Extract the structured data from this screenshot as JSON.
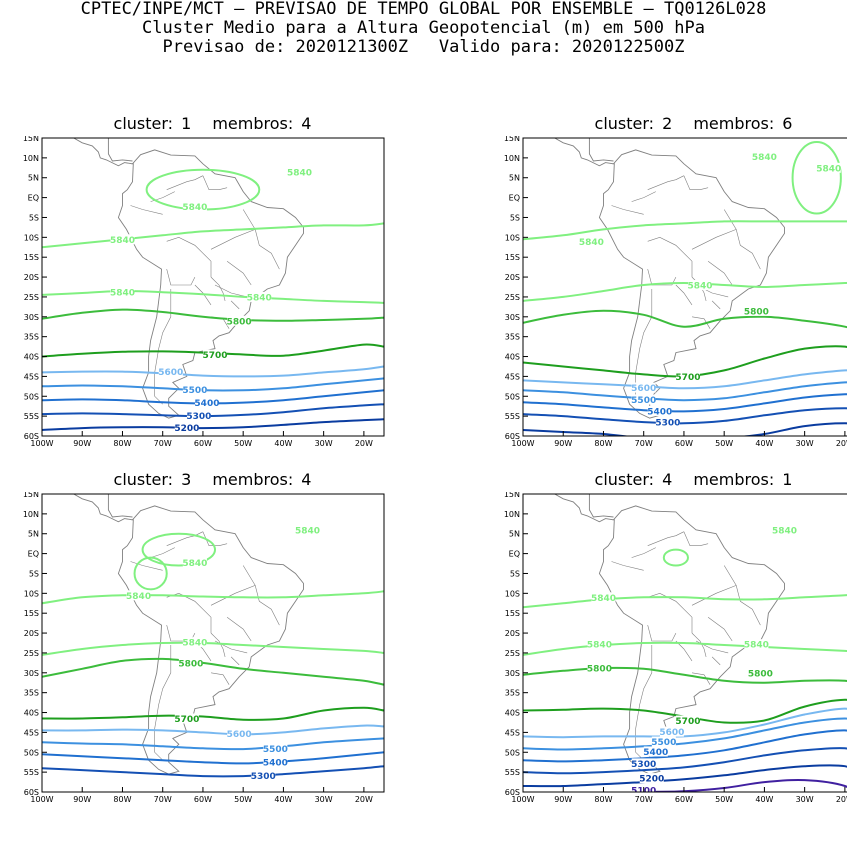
{
  "header": {
    "line1": "CPTEC/INPE/MCT – PREVISAO DE TEMPO GLOBAL POR ENSEMBLE – TQ0126L028",
    "line2": "Cluster Medio para a Altura Geopotencial (m) em 500 hPa",
    "line3_forecast": "Previsao de: 2020121300Z",
    "line3_valid": "Valido para: 2020122500Z"
  },
  "axes": {
    "lat_labels": [
      "15N",
      "10N",
      "5N",
      "EQ",
      "5S",
      "10S",
      "15S",
      "20S",
      "25S",
      "30S",
      "35S",
      "40S",
      "45S",
      "50S",
      "55S",
      "60S"
    ],
    "lon_labels": [
      "100W",
      "90W",
      "80W",
      "70W",
      "60W",
      "50W",
      "40W",
      "30W",
      "20W"
    ]
  },
  "colors": {
    "5840": "#80f080",
    "5800": "#3cbc3c",
    "5700": "#1e9e1e",
    "5600": "#78b8f0",
    "5500": "#3c90e0",
    "5400": "#2070d0",
    "5300": "#1450b4",
    "5200": "#0a3ca0",
    "5100": "#4020a0",
    "land": "#808080"
  },
  "panels": [
    {
      "cluster_label": "cluster:",
      "cluster_num": "1",
      "members_label": "membros:",
      "members_num": "4",
      "contours": [
        {
          "level": "5840",
          "lats": [
            -12.5,
            -11.5,
            -10.5,
            -9.5,
            -8.5,
            -8.0,
            -7.5,
            -7.0,
            -7.0,
            -6.5
          ]
        },
        {
          "level": "5840",
          "lats": [
            -24.5,
            -24.0,
            -23.5,
            -23.8,
            -24.3,
            -25.0,
            -25.5,
            -26.0,
            -26.3,
            -26.5
          ]
        },
        {
          "level": "5800",
          "lats": [
            -30.5,
            -29.0,
            -28.2,
            -28.8,
            -30.0,
            -30.8,
            -31.0,
            -30.8,
            -30.5,
            -30.2
          ]
        },
        {
          "level": "5700",
          "lats": [
            -40.0,
            -39.3,
            -38.8,
            -38.7,
            -39.0,
            -39.5,
            -39.8,
            -38.5,
            -37.0,
            -37.5
          ]
        },
        {
          "level": "5600",
          "lats": [
            -44.0,
            -43.8,
            -43.8,
            -44.2,
            -44.8,
            -45.0,
            -44.8,
            -44.0,
            -43.2,
            -42.5
          ]
        },
        {
          "level": "5500",
          "lats": [
            -47.5,
            -47.3,
            -47.5,
            -48.0,
            -48.5,
            -48.5,
            -48.0,
            -47.0,
            -46.0,
            -45.5
          ]
        },
        {
          "level": "5400",
          "lats": [
            -51.0,
            -50.8,
            -51.0,
            -51.5,
            -51.8,
            -51.6,
            -51.0,
            -50.0,
            -49.0,
            -48.5
          ]
        },
        {
          "level": "5300",
          "lats": [
            -54.5,
            -54.3,
            -54.5,
            -54.8,
            -55.0,
            -54.7,
            -54.0,
            -53.0,
            -52.3,
            -52.0
          ]
        },
        {
          "level": "5200",
          "lats": [
            -58.5,
            -58.0,
            -57.8,
            -57.8,
            -58.0,
            -57.8,
            -57.2,
            -56.5,
            -56.0,
            -55.8
          ]
        }
      ],
      "blobs": [
        {
          "lon": -60,
          "lat": 2,
          "rx": 14,
          "ry": 5
        }
      ],
      "labels": [
        {
          "text": "5840",
          "lon": -80,
          "lat": -10.5
        },
        {
          "text": "5840",
          "lon": -62,
          "lat": -2.2
        },
        {
          "text": "5840",
          "lon": -36,
          "lat": 6.5
        },
        {
          "text": "5840",
          "lon": -80,
          "lat": -23.7
        },
        {
          "text": "5840",
          "lon": -46,
          "lat": -25.0
        },
        {
          "text": "5800",
          "lon": -51,
          "lat": -31.0
        },
        {
          "text": "5700",
          "lon": -57,
          "lat": -39.5
        },
        {
          "text": "5600",
          "lon": -68,
          "lat": -43.8
        },
        {
          "text": "5500",
          "lon": -62,
          "lat": -48.3
        },
        {
          "text": "5400",
          "lon": -59,
          "lat": -51.6
        },
        {
          "text": "5300",
          "lon": -61,
          "lat": -54.8
        },
        {
          "text": "5200",
          "lon": -64,
          "lat": -57.8
        }
      ]
    },
    {
      "cluster_label": "cluster:",
      "cluster_num": "2",
      "members_label": "membros:",
      "members_num": "6",
      "contours": [
        {
          "level": "5840",
          "lats": [
            -10.5,
            -9.5,
            -8.0,
            -7.0,
            -6.5,
            -6.0,
            -6.0,
            -6.0,
            -6.0,
            -6.0
          ]
        },
        {
          "level": "5840",
          "lats": [
            -26.0,
            -25.0,
            -23.5,
            -22.0,
            -21.5,
            -22.0,
            -22.5,
            -22.0,
            -21.5,
            -21.5
          ]
        },
        {
          "level": "5800",
          "lats": [
            -31.5,
            -29.5,
            -28.5,
            -29.5,
            -32.5,
            -30.5,
            -30.0,
            -31.0,
            -32.5,
            -34.0
          ]
        },
        {
          "level": "5700",
          "lats": [
            -41.5,
            -42.5,
            -43.5,
            -44.5,
            -45.0,
            -43.5,
            -40.5,
            -38.0,
            -37.5,
            -39.5
          ]
        },
        {
          "level": "5600",
          "lats": [
            -46.0,
            -46.5,
            -47.0,
            -47.5,
            -48.0,
            -47.5,
            -46.0,
            -44.5,
            -43.5,
            -43.5
          ]
        },
        {
          "level": "5500",
          "lats": [
            -48.5,
            -49.0,
            -49.8,
            -50.5,
            -51.0,
            -50.5,
            -49.0,
            -47.5,
            -46.5,
            -46.5
          ]
        },
        {
          "level": "5400",
          "lats": [
            -51.5,
            -52.0,
            -52.8,
            -53.5,
            -53.8,
            -53.2,
            -51.8,
            -50.3,
            -49.5,
            -49.5
          ]
        },
        {
          "level": "5300",
          "lats": [
            -54.5,
            -55.0,
            -55.8,
            -56.5,
            -56.8,
            -56.2,
            -54.8,
            -53.5,
            -53.0,
            -53.5
          ]
        },
        {
          "level": "5200",
          "lats": [
            -58.5,
            -59.0,
            -59.5,
            -60.5,
            -60.5,
            -60.5,
            -59.5,
            -57.5,
            -56.8,
            -57.5
          ]
        }
      ],
      "blobs": [
        {
          "lon": -27,
          "lat": 5,
          "rx": 6,
          "ry": 9
        }
      ],
      "labels": [
        {
          "text": "5840",
          "lon": -83,
          "lat": -11.0
        },
        {
          "text": "5840",
          "lon": -40,
          "lat": 10.3
        },
        {
          "text": "5840",
          "lon": -24,
          "lat": 7.5
        },
        {
          "text": "5840",
          "lon": -56,
          "lat": -22.0
        },
        {
          "text": "5800",
          "lon": -42,
          "lat": -28.5
        },
        {
          "text": "5700",
          "lon": -59,
          "lat": -45.0
        },
        {
          "text": "5600",
          "lon": -70,
          "lat": -47.8
        },
        {
          "text": "5500",
          "lon": -70,
          "lat": -50.8
        },
        {
          "text": "5400",
          "lon": -66,
          "lat": -53.7
        },
        {
          "text": "5300",
          "lon": -64,
          "lat": -56.5
        }
      ]
    },
    {
      "cluster_label": "cluster:",
      "cluster_num": "3",
      "members_label": "membros:",
      "members_num": "4",
      "contours": [
        {
          "level": "5840",
          "lats": [
            -12.5,
            -11.0,
            -10.5,
            -10.5,
            -10.8,
            -11.0,
            -11.0,
            -10.5,
            -10.0,
            -9.5
          ]
        },
        {
          "level": "5840",
          "lats": [
            -25.5,
            -24.0,
            -23.0,
            -22.5,
            -22.5,
            -23.0,
            -23.5,
            -24.0,
            -24.5,
            -25.0
          ]
        },
        {
          "level": "5800",
          "lats": [
            -31.0,
            -29.0,
            -27.0,
            -26.5,
            -27.5,
            -29.0,
            -30.0,
            -31.0,
            -32.0,
            -33.0
          ]
        },
        {
          "level": "5700",
          "lats": [
            -41.5,
            -41.5,
            -41.2,
            -40.8,
            -41.0,
            -41.8,
            -41.5,
            -39.5,
            -38.8,
            -39.5
          ]
        },
        {
          "level": "5600",
          "lats": [
            -44.5,
            -44.5,
            -44.3,
            -44.5,
            -45.0,
            -45.5,
            -45.0,
            -44.0,
            -43.3,
            -43.5
          ]
        },
        {
          "level": "5500",
          "lats": [
            -47.5,
            -47.8,
            -48.0,
            -48.5,
            -49.0,
            -49.2,
            -48.5,
            -47.5,
            -46.8,
            -46.5
          ]
        },
        {
          "level": "5400",
          "lats": [
            -50.5,
            -51.0,
            -51.5,
            -52.0,
            -52.5,
            -52.8,
            -52.3,
            -51.5,
            -50.5,
            -50.0
          ]
        },
        {
          "level": "5300",
          "lats": [
            -54.0,
            -54.5,
            -55.0,
            -55.5,
            -56.0,
            -56.0,
            -55.5,
            -54.8,
            -54.0,
            -53.5
          ]
        }
      ],
      "blobs": [
        {
          "lon": -66,
          "lat": 1,
          "rx": 9,
          "ry": 4
        },
        {
          "lon": -73,
          "lat": -5,
          "rx": 4,
          "ry": 4
        }
      ],
      "labels": [
        {
          "text": "5840",
          "lon": -76,
          "lat": -10.5
        },
        {
          "text": "5840",
          "lon": -62,
          "lat": -2.2
        },
        {
          "text": "5840",
          "lon": -34,
          "lat": 6.0
        },
        {
          "text": "5840",
          "lon": -62,
          "lat": -22.3
        },
        {
          "text": "5800",
          "lon": -63,
          "lat": -27.5
        },
        {
          "text": "5700",
          "lon": -64,
          "lat": -41.5
        },
        {
          "text": "5600",
          "lon": -51,
          "lat": -45.3
        },
        {
          "text": "5500",
          "lon": -42,
          "lat": -49.0
        },
        {
          "text": "5400",
          "lon": -42,
          "lat": -52.5
        },
        {
          "text": "5300",
          "lon": -45,
          "lat": -55.8
        }
      ]
    },
    {
      "cluster_label": "cluster:",
      "cluster_num": "4",
      "members_label": "membros:",
      "members_num": "1",
      "contours": [
        {
          "level": "5840",
          "lats": [
            -13.5,
            -12.5,
            -11.5,
            -11.0,
            -11.0,
            -11.5,
            -11.5,
            -11.0,
            -10.5,
            -10.0
          ]
        },
        {
          "level": "5840",
          "lats": [
            -25.5,
            -24.0,
            -23.0,
            -22.5,
            -22.5,
            -23.0,
            -23.5,
            -24.0,
            -24.5,
            -25.0
          ]
        },
        {
          "level": "5800",
          "lats": [
            -30.5,
            -29.5,
            -28.8,
            -29.0,
            -30.5,
            -32.0,
            -32.5,
            -32.0,
            -32.0,
            -33.0
          ]
        },
        {
          "level": "5700",
          "lats": [
            -39.5,
            -39.3,
            -39.0,
            -39.5,
            -41.0,
            -42.5,
            -42.0,
            -38.5,
            -36.8,
            -38.0
          ]
        },
        {
          "level": "5600",
          "lats": [
            -46.0,
            -46.2,
            -46.0,
            -46.0,
            -46.0,
            -45.0,
            -43.0,
            -40.5,
            -39.0,
            -40.5
          ]
        },
        {
          "level": "5500",
          "lats": [
            -49.0,
            -49.3,
            -49.0,
            -48.5,
            -47.8,
            -46.5,
            -44.5,
            -42.5,
            -41.5,
            -42.5
          ]
        },
        {
          "level": "5400",
          "lats": [
            -52.0,
            -52.3,
            -52.0,
            -51.5,
            -50.8,
            -49.5,
            -47.5,
            -45.5,
            -44.5,
            -46.0
          ]
        },
        {
          "level": "5300",
          "lats": [
            -55.0,
            -55.3,
            -55.0,
            -54.5,
            -53.8,
            -52.5,
            -50.8,
            -49.5,
            -49.0,
            -50.5
          ]
        },
        {
          "level": "5200",
          "lats": [
            -58.5,
            -58.5,
            -58.0,
            -57.5,
            -56.8,
            -55.8,
            -54.5,
            -53.5,
            -53.5,
            -56.0
          ]
        },
        {
          "level": "5100",
          "lats": [
            -62.0,
            -61.0,
            -60.5,
            -60.0,
            -59.8,
            -59.0,
            -57.5,
            -57.0,
            -58.5,
            -62.0
          ]
        }
      ],
      "blobs": [
        {
          "lon": -62,
          "lat": -1,
          "rx": 3,
          "ry": 2
        }
      ],
      "labels": [
        {
          "text": "5840",
          "lon": -80,
          "lat": -11.0
        },
        {
          "text": "5840",
          "lon": -35,
          "lat": 6.0
        },
        {
          "text": "5840",
          "lon": -81,
          "lat": -22.8
        },
        {
          "text": "5840",
          "lon": -42,
          "lat": -22.8
        },
        {
          "text": "5800",
          "lon": -81,
          "lat": -28.8
        },
        {
          "text": "5800",
          "lon": -41,
          "lat": -30.0
        },
        {
          "text": "5700",
          "lon": -59,
          "lat": -42.0
        },
        {
          "text": "5600",
          "lon": -63,
          "lat": -44.8
        },
        {
          "text": "5500",
          "lon": -65,
          "lat": -47.3
        },
        {
          "text": "5400",
          "lon": -67,
          "lat": -49.8
        },
        {
          "text": "5300",
          "lon": -70,
          "lat": -52.8
        },
        {
          "text": "5200",
          "lon": -68,
          "lat": -56.5
        },
        {
          "text": "5100",
          "lon": -70,
          "lat": -59.5
        }
      ]
    }
  ]
}
